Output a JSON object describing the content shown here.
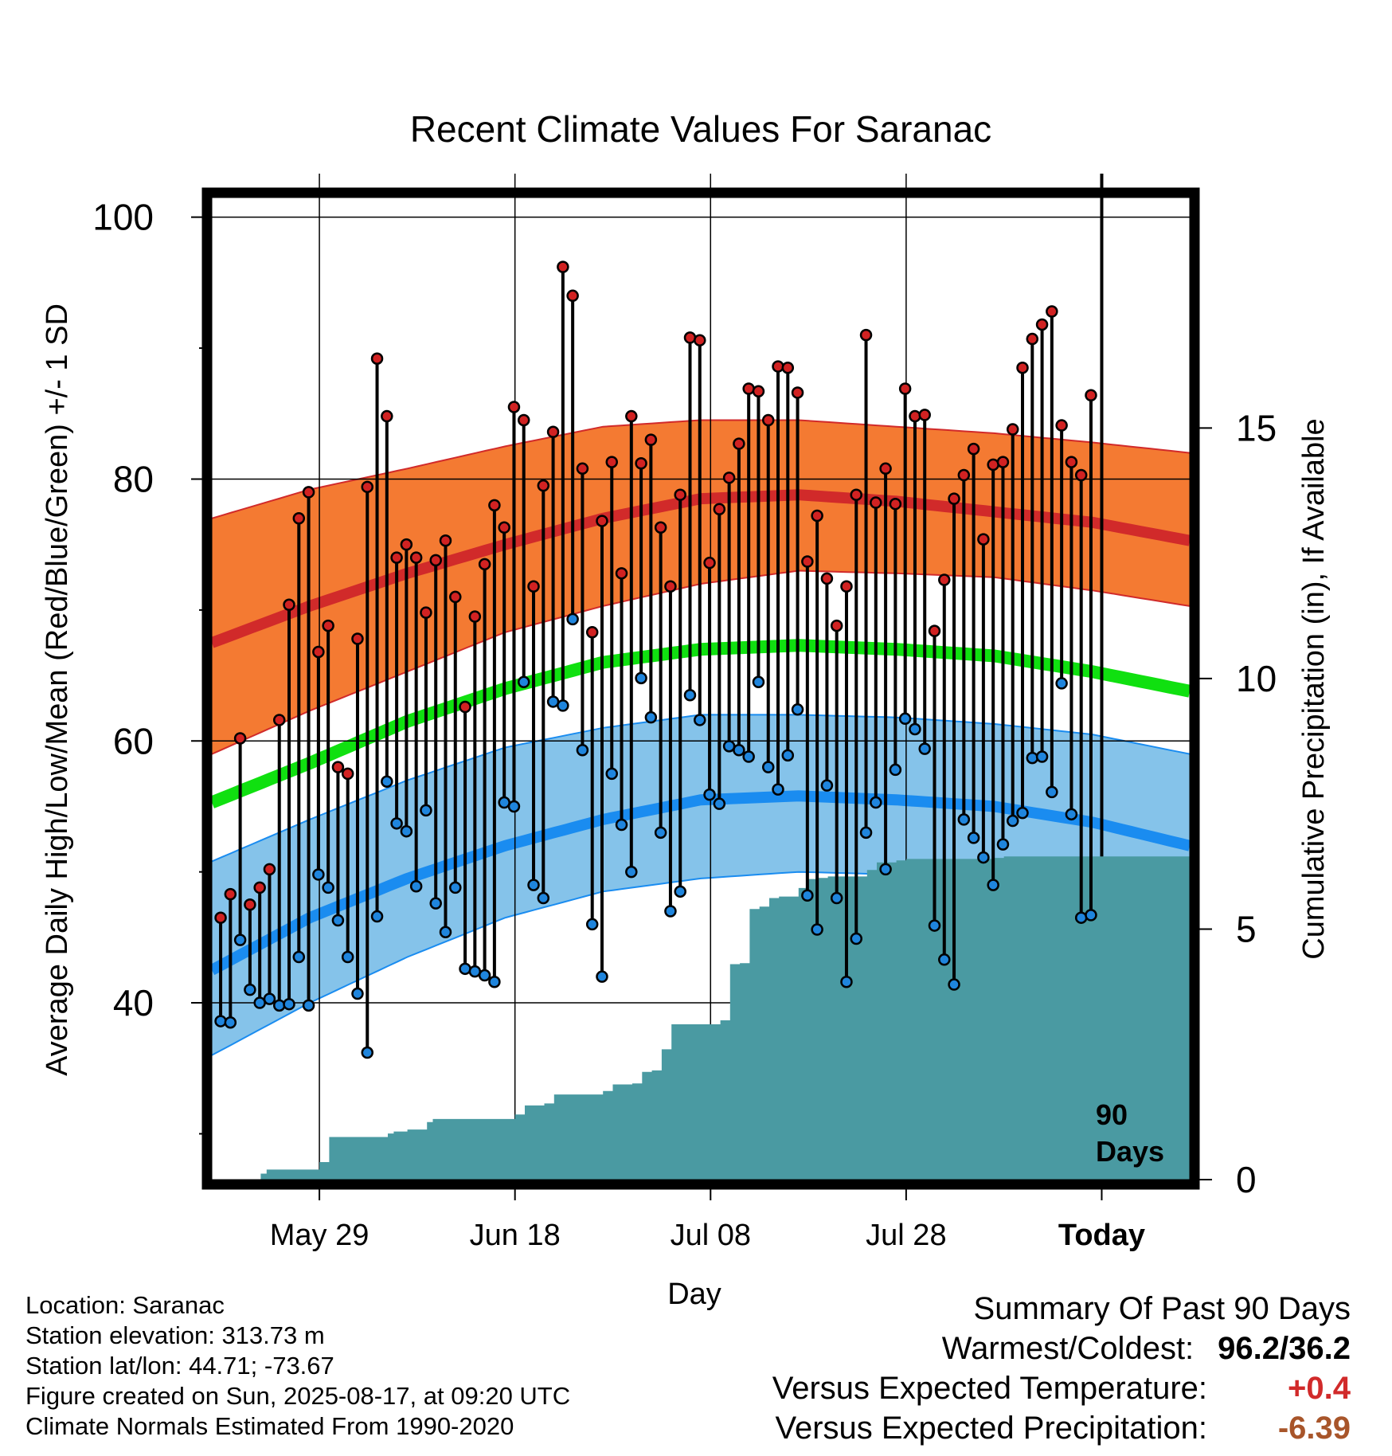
{
  "chart_data": {
    "type": "line",
    "title": "Recent Climate Values For Saranac",
    "xlabel": "Day",
    "ylabel": "Average Daily High/Low/Mean (Red/Blue/Green) +/- 1 SD",
    "y2label": "Cumulative Precipitation (in), If Available",
    "ylim": [
      26.5,
      101.5
    ],
    "y2lim": [
      0,
      19.6
    ],
    "yticks": [
      "100",
      "80",
      "60",
      "40"
    ],
    "y2ticks": [
      "15",
      "10",
      "5",
      "0"
    ],
    "xticks": [
      "May 29",
      "Jun 18",
      "Jul 08",
      "Jul 28",
      "Today"
    ],
    "xtick_day_index": [
      11,
      31,
      51,
      71,
      91
    ],
    "xlim_day_index": [
      0,
      100
    ],
    "grid": true,
    "today_marker": {
      "day_index": 91,
      "label_line1": "90",
      "label_line2": "Days"
    },
    "colors": {
      "high_band": "#f47a32",
      "high_line": "#d12a2a",
      "low_band": "#85c3ea",
      "low_line": "#1a8cf0",
      "mean_line": "#10e010",
      "precip": "#4a9aa2",
      "high_dot": "#d12222",
      "low_dot": "#1f85dd",
      "surplus": "#d12a2a",
      "deficit": "#a8552a"
    },
    "normals": {
      "day_index": [
        0,
        10,
        20,
        30,
        40,
        50,
        60,
        70,
        80,
        90,
        100
      ],
      "high_mean": [
        67.5,
        70.3,
        72.8,
        75.0,
        77.0,
        78.5,
        78.8,
        78.3,
        77.5,
        76.7,
        75.3
      ],
      "high_plus_sd": [
        77.0,
        79.2,
        80.8,
        82.5,
        84.0,
        84.5,
        84.5,
        84.0,
        83.5,
        82.8,
        82.0
      ],
      "high_minus_sd": [
        59.0,
        62.3,
        65.3,
        68.3,
        70.3,
        72.0,
        73.0,
        72.8,
        72.5,
        71.5,
        70.3
      ],
      "mean": [
        55.3,
        58.3,
        61.5,
        64.0,
        66.0,
        67.0,
        67.3,
        67.0,
        66.5,
        65.3,
        63.8
      ],
      "low_mean": [
        42.5,
        46.5,
        49.5,
        52.0,
        54.0,
        55.5,
        55.8,
        55.5,
        55.0,
        53.8,
        52.0
      ],
      "low_plus_sd": [
        50.8,
        54.0,
        57.0,
        59.5,
        61.0,
        62.0,
        62.0,
        61.8,
        61.3,
        60.5,
        59.0
      ],
      "low_minus_sd": [
        36.0,
        40.0,
        43.5,
        46.5,
        48.5,
        49.5,
        50.0,
        49.8,
        49.0,
        48.0,
        45.5
      ]
    },
    "series": [
      {
        "name": "High",
        "values": [
          46.5,
          48.3,
          60.2,
          47.5,
          48.8,
          50.2,
          61.6,
          70.4,
          77.0,
          79.0,
          66.8,
          68.8,
          58.0,
          57.5,
          67.8,
          79.4,
          89.2,
          84.8,
          74.0,
          75.0,
          74.0,
          69.8,
          73.8,
          75.3,
          71.0,
          62.6,
          69.5,
          73.5,
          78.0,
          76.3,
          85.5,
          84.5,
          71.8,
          79.5,
          83.6,
          96.2,
          94.0,
          80.8,
          68.3,
          76.8,
          81.3,
          72.8,
          84.8,
          81.2,
          83.0,
          76.3,
          71.8,
          78.8,
          90.8,
          90.6,
          73.6,
          77.7,
          80.1,
          82.7,
          86.9,
          86.7,
          84.5,
          88.6,
          88.5,
          86.6,
          73.7,
          77.2,
          72.4,
          68.8,
          71.8,
          78.8,
          91.0,
          78.2,
          80.8,
          78.1,
          86.9,
          84.8,
          84.9,
          68.4,
          72.3,
          78.5,
          80.3,
          82.3,
          75.4,
          81.1,
          81.3,
          83.8,
          88.5,
          90.7,
          91.8,
          92.8,
          84.1,
          81.3,
          80.3,
          86.4
        ]
      },
      {
        "name": "Low",
        "values": [
          38.6,
          38.5,
          44.8,
          41.0,
          40.0,
          40.3,
          39.8,
          39.9,
          43.5,
          39.8,
          49.8,
          48.8,
          46.3,
          43.5,
          40.7,
          36.2,
          46.6,
          56.9,
          53.7,
          53.1,
          48.9,
          54.7,
          47.6,
          45.4,
          48.8,
          42.6,
          42.4,
          42.1,
          41.6,
          55.3,
          55.0,
          64.5,
          49.0,
          48.0,
          63.0,
          62.7,
          69.3,
          59.3,
          46.0,
          42.0,
          57.5,
          53.6,
          50.0,
          64.8,
          61.8,
          53.0,
          47.0,
          48.5,
          63.5,
          61.6,
          55.9,
          55.2,
          59.6,
          59.3,
          58.8,
          64.5,
          58.0,
          56.3,
          58.9,
          62.4,
          48.2,
          45.6,
          56.6,
          48.0,
          41.6,
          44.9,
          53.0,
          55.3,
          50.2,
          57.8,
          61.7,
          60.9,
          59.4,
          45.9,
          43.3,
          41.4,
          54.0,
          52.6,
          51.1,
          49.0,
          52.1,
          53.9,
          54.5,
          58.7,
          58.8,
          56.1,
          64.4,
          54.4,
          46.5,
          46.7
        ]
      },
      {
        "name": "Precipitation",
        "x": [
          0,
          5,
          5.6,
          11,
          12,
          18,
          18.6,
          20,
          22,
          22.6,
          31,
          32,
          34,
          35,
          40,
          41,
          43,
          44,
          45,
          46,
          47,
          52,
          53,
          54,
          55,
          56,
          57,
          58,
          60,
          61,
          62,
          63,
          67,
          68,
          70,
          71,
          80,
          81,
          100
        ],
        "values": [
          0,
          0.12,
          0.2,
          0.35,
          0.85,
          0.92,
          0.96,
          1.0,
          1.15,
          1.21,
          1.3,
          1.48,
          1.52,
          1.7,
          1.77,
          1.9,
          1.92,
          2.15,
          2.18,
          2.6,
          3.1,
          3.18,
          4.3,
          4.32,
          5.4,
          5.45,
          5.62,
          5.65,
          5.82,
          6.0,
          6.02,
          6.05,
          6.18,
          6.33,
          6.37,
          6.4,
          6.42,
          6.45,
          6.45
        ]
      }
    ]
  },
  "info": {
    "location": "Location: Saranac",
    "elevation": "Station elevation: 313.73 m",
    "latlon": "Station lat/lon: 44.71; -73.67",
    "created": "Figure created on Sun, 2025-08-17, at 09:20 UTC",
    "normals": "Climate Normals Estimated From 1990-2020"
  },
  "summary": {
    "heading": "Summary Of Past 90 Days",
    "warm_cold_label": "Warmest/Coldest:",
    "warm_cold_value": "96.2/36.2",
    "temp_label": "Versus Expected Temperature:",
    "temp_value": "+0.4",
    "precip_label": "Versus Expected Precipitation:",
    "precip_value": "-6.39"
  }
}
